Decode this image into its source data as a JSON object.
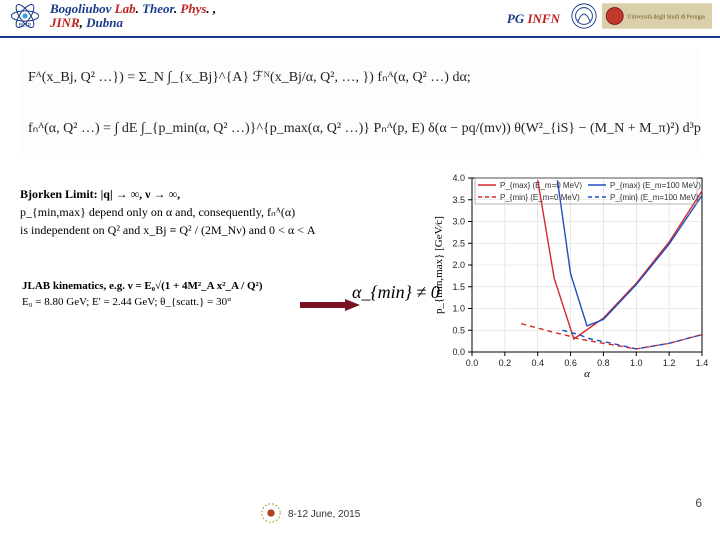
{
  "header": {
    "affiliation_line1_parts": [
      {
        "t": "Bogoliubov ",
        "c": "c-blue"
      },
      {
        "t": "Lab",
        "c": "c-red"
      },
      {
        "t": ". ",
        "c": "c-black"
      },
      {
        "t": "Theor",
        "c": "c-blue"
      },
      {
        "t": ". ",
        "c": "c-black"
      },
      {
        "t": "Phys",
        "c": "c-red"
      },
      {
        "t": ". ,",
        "c": "c-black"
      }
    ],
    "affiliation_line2_parts": [
      {
        "t": "JINR",
        "c": "c-red"
      },
      {
        "t": ", ",
        "c": "c-black"
      },
      {
        "t": "Dubna",
        "c": "c-blue"
      }
    ],
    "pg_infn_parts": [
      {
        "t": "PG ",
        "c": "c-blue"
      },
      {
        "t": "INFN",
        "c": "c-red"
      }
    ],
    "right_org": "Università degli Studi di Perugia"
  },
  "equations": {
    "line1": "Fᴬ(x_Bj, Q² …}) = Σ_N ∫_{x_Bj}^{A} ℱᴺ(x_Bj/α, Q², …, }) fₙᴬ(α, Q² …) dα;",
    "line2": "fₙᴬ(α, Q² …) = ∫ dE ∫_{p_min(α, Q² …)}^{p_max(α, Q² …)} Pₙᴬ(p, E) δ(α − pq/(mν)) θ(W²_{iS} − (M_N + M_π)²) d³p"
  },
  "bjorken_block": {
    "line1": "Bjorken Limit:  |q| → ∞,   ν → ∞,",
    "line2_prefix": "p_{min,max} depend only on α and, consequently, ",
    "line2_fn": "fₙᴬ(α)",
    "line3_prefix": "is independent on Q² and ",
    "line3_expr": "x_Bj ≡ Q² / (2M_Nν)",
    "line3_tail": " and 0 < α < A"
  },
  "jlab_block": {
    "line1": "JLAB kinematics, e.g.  ν = E₀√(1 + 4M²_A x²_A / Q²)",
    "line2": "E₀ = 8.80 GeV;   E' = 2.44 GeV;   θ_{scatt.} = 30°"
  },
  "alpha_min_text": "α_{min} ≠ 0",
  "chart": {
    "type": "line",
    "xlabel": "α",
    "ylabel": "p_{min,max} [GeV⁄c]",
    "xlim": [
      0.0,
      1.4
    ],
    "ylim": [
      0.0,
      4.0
    ],
    "xticks": [
      0.0,
      0.2,
      0.4,
      0.6,
      0.8,
      1.0,
      1.2,
      1.4
    ],
    "yticks": [
      0.0,
      0.5,
      1.0,
      1.5,
      2.0,
      2.5,
      3.0,
      3.5,
      4.0
    ],
    "grid_color": "#d9d9d9",
    "bg": "#ffffff",
    "axis_color": "#000000",
    "legend": [
      {
        "label": "P_{max} (E_m=0 MeV)",
        "color": "#d62728",
        "dash": "solid"
      },
      {
        "label": "P_{min} (E_m=0 MeV)",
        "color": "#d62728",
        "dash": "dashed"
      },
      {
        "label": "P_{max} (E_m=100 MeV)",
        "color": "#1f4ebf",
        "dash": "solid"
      },
      {
        "label": "P_{min} (E_m=100 MeV)",
        "color": "#1f4ebf",
        "dash": "dashed"
      }
    ],
    "series": [
      {
        "color": "#d62728",
        "dash": "solid",
        "points": [
          [
            0.4,
            3.95
          ],
          [
            0.5,
            1.7
          ],
          [
            0.62,
            0.3
          ],
          [
            0.8,
            0.78
          ],
          [
            1.0,
            1.58
          ],
          [
            1.2,
            2.53
          ],
          [
            1.4,
            3.7
          ]
        ]
      },
      {
        "color": "#d62728",
        "dash": "dashed",
        "points": [
          [
            0.3,
            0.65
          ],
          [
            0.4,
            0.55
          ],
          [
            0.5,
            0.45
          ],
          [
            0.6,
            0.36
          ],
          [
            0.65,
            0.3
          ],
          [
            0.8,
            0.2
          ],
          [
            1.0,
            0.07
          ],
          [
            1.2,
            0.2
          ],
          [
            1.4,
            0.4
          ]
        ]
      },
      {
        "color": "#1f4ebf",
        "dash": "solid",
        "points": [
          [
            0.52,
            3.95
          ],
          [
            0.6,
            1.8
          ],
          [
            0.7,
            0.6
          ],
          [
            0.8,
            0.75
          ],
          [
            1.0,
            1.55
          ],
          [
            1.2,
            2.48
          ],
          [
            1.4,
            3.6
          ]
        ]
      },
      {
        "color": "#1f4ebf",
        "dash": "dashed",
        "points": [
          [
            0.55,
            0.5
          ],
          [
            0.65,
            0.4
          ],
          [
            0.72,
            0.3
          ],
          [
            0.85,
            0.2
          ],
          [
            1.0,
            0.07
          ],
          [
            1.2,
            0.2
          ],
          [
            1.4,
            0.4
          ]
        ]
      }
    ],
    "line_width": 1.4,
    "axis_fontsize": 9,
    "label_fontsize": 11
  },
  "footer": {
    "date": "8-12 June, 2015",
    "page": "6"
  },
  "colors": {
    "header_rule": "#1a3a8a",
    "arrow_fill": "#7a1020"
  }
}
